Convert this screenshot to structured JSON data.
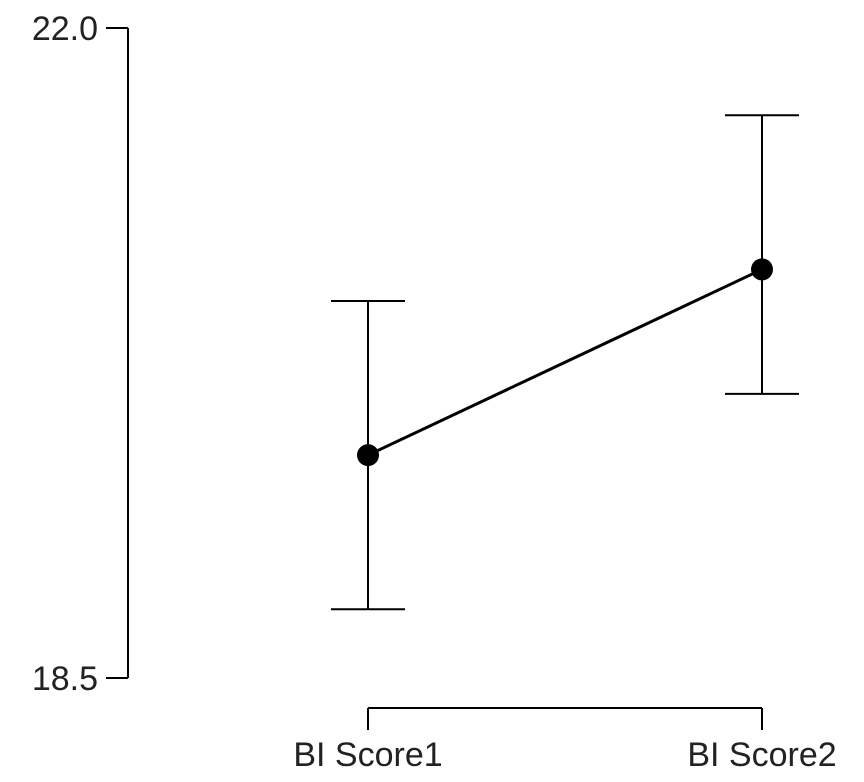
{
  "chart_data": {
    "type": "line",
    "title": "",
    "xlabel": "",
    "ylabel": "",
    "categories": [
      "BI Score1",
      "BI Score2"
    ],
    "ylim": [
      18.5,
      22.0
    ],
    "yticks": [
      "22.0",
      "18.5"
    ],
    "grid": false,
    "series": [
      {
        "values": [
          19.7,
          20.7
        ],
        "error_low": [
          18.87,
          20.03
        ],
        "error_high": [
          20.53,
          21.53
        ]
      }
    ],
    "colors": {
      "line": "#000000",
      "text": "#222222"
    }
  }
}
